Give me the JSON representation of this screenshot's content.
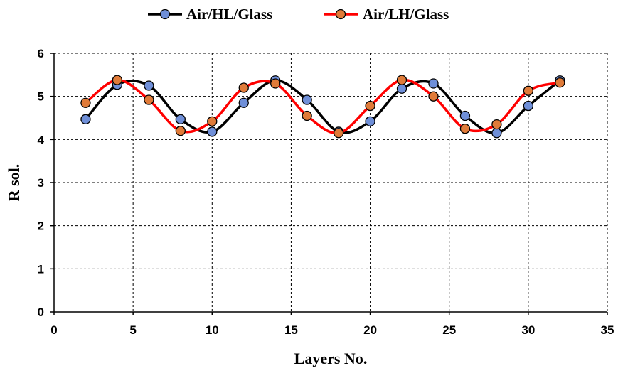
{
  "chart_data": {
    "type": "line",
    "title": "",
    "xlabel": "Layers No.",
    "ylabel": "R sol.",
    "xlim": [
      0,
      35
    ],
    "ylim": [
      0,
      6
    ],
    "xticks": [
      0,
      5,
      10,
      15,
      20,
      25,
      30,
      35
    ],
    "yticks": [
      0,
      1,
      2,
      3,
      4,
      5,
      6
    ],
    "grid": "dashed",
    "legend_position": "top-center",
    "x": [
      2,
      4,
      6,
      8,
      10,
      12,
      14,
      16,
      18,
      20,
      22,
      24,
      26,
      28,
      30,
      32
    ],
    "series": [
      {
        "name": "Air/HL/Glass",
        "line_color": "#000000",
        "marker_color": "#6f8fd8",
        "values": [
          4.47,
          5.27,
          5.25,
          4.47,
          4.18,
          4.85,
          5.37,
          4.92,
          4.18,
          4.42,
          5.18,
          5.3,
          4.55,
          4.15,
          4.78,
          5.37
        ]
      },
      {
        "name": "Air/LH/Glass",
        "line_color": "#ff0000",
        "marker_color": "#e07b39",
        "values": [
          4.85,
          5.38,
          4.92,
          4.2,
          4.42,
          5.2,
          5.3,
          4.55,
          4.15,
          4.78,
          5.38,
          5.0,
          4.25,
          4.35,
          5.13,
          5.32
        ]
      }
    ]
  }
}
